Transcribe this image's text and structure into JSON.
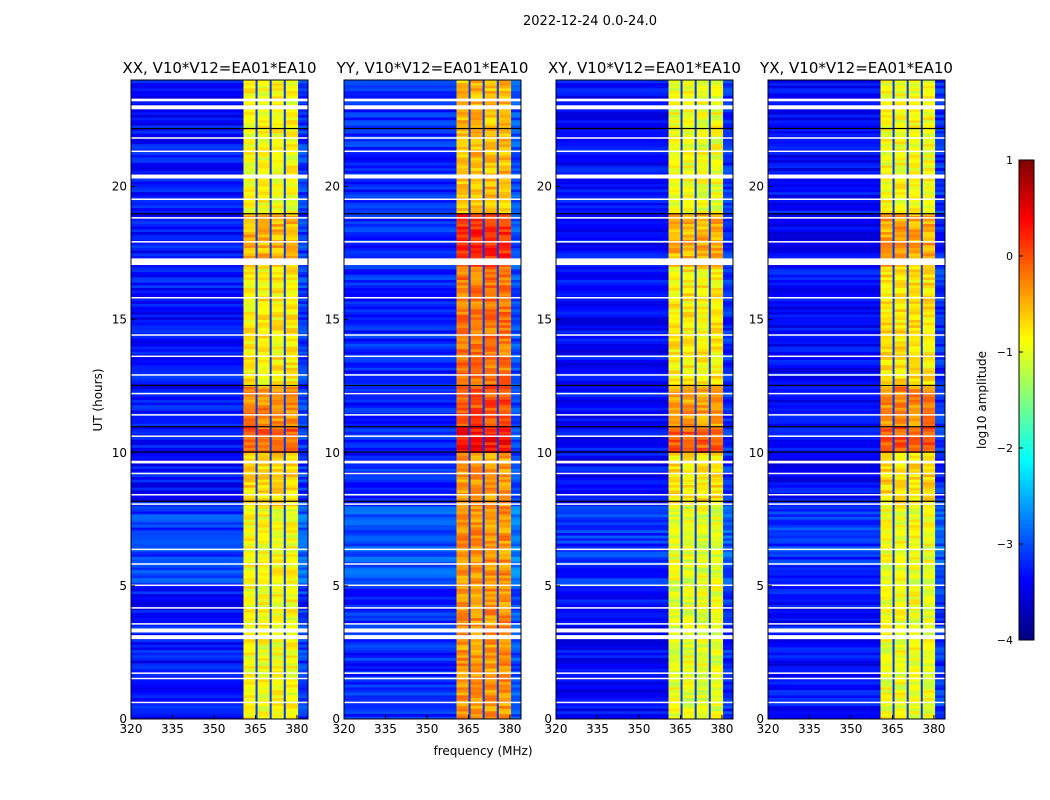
{
  "chart_data": {
    "type": "heatmap",
    "suptitle": "2022-12-24 0.0-24.0",
    "xlabel": "frequency (MHz)",
    "ylabel": "UT (hours)",
    "xlim": [
      320,
      384
    ],
    "ylim": [
      0,
      24
    ],
    "xticks": [
      320,
      335,
      350,
      365,
      380
    ],
    "yticks": [
      0,
      5,
      10,
      15,
      20
    ],
    "colorbar": {
      "label": "log10 amplitude",
      "range": [
        -4,
        1
      ],
      "ticks": [
        1,
        0,
        -1,
        -2,
        -3,
        -4
      ],
      "tick_labels": [
        "1",
        "0",
        "−1",
        "−2",
        "−3",
        "−4"
      ],
      "colormap": "jet"
    },
    "rfi_band_mhz": [
      360.7,
      380.4
    ],
    "band_separators_mhz": [
      365.4,
      370.5,
      375.6,
      380.4
    ],
    "flagged_hours": [
      [
        0.6,
        0.65
      ],
      [
        1.5,
        1.55
      ],
      [
        1.7,
        1.75
      ],
      [
        3.0,
        3.15
      ],
      [
        3.25,
        3.4
      ],
      [
        3.55,
        3.6
      ],
      [
        4.15,
        4.2
      ],
      [
        5.0,
        5.05
      ],
      [
        5.8,
        5.85
      ],
      [
        6.35,
        6.4
      ],
      [
        8.05,
        8.1
      ],
      [
        8.4,
        8.45
      ],
      [
        9.2,
        9.25
      ],
      [
        9.6,
        9.7
      ],
      [
        10.6,
        10.65
      ],
      [
        11.4,
        11.45
      ],
      [
        12.2,
        12.25
      ],
      [
        12.9,
        12.95
      ],
      [
        13.6,
        13.65
      ],
      [
        14.4,
        14.45
      ],
      [
        15.8,
        15.85
      ],
      [
        17.05,
        17.3
      ],
      [
        17.9,
        17.95
      ],
      [
        18.8,
        18.85
      ],
      [
        19.5,
        19.55
      ],
      [
        20.3,
        20.45
      ],
      [
        21.3,
        21.35
      ],
      [
        21.8,
        21.85
      ],
      [
        22.9,
        23.05
      ],
      [
        23.2,
        23.3
      ]
    ],
    "black_hours": [
      8.2,
      10.05,
      11.0,
      12.55,
      19.0,
      22.2
    ],
    "panels": [
      {
        "title": "XX, V10*V12=EA01*EA10",
        "background_log_amp": -3.3,
        "band_segments": [
          {
            "hours": [
              0,
              8
            ],
            "value": -0.9
          },
          {
            "hours": [
              8,
              10
            ],
            "value": -0.7
          },
          {
            "hours": [
              10,
              11
            ],
            "value": -0.1
          },
          {
            "hours": [
              11,
              12.5
            ],
            "value": -0.3
          },
          {
            "hours": [
              12.5,
              17
            ],
            "value": -0.8
          },
          {
            "hours": [
              17,
              19
            ],
            "value": -0.5
          },
          {
            "hours": [
              19,
              24
            ],
            "value": -0.9
          }
        ]
      },
      {
        "title": "YY, V10*V12=EA01*EA10",
        "background_log_amp": -3.2,
        "band_segments": [
          {
            "hours": [
              0,
              8
            ],
            "value": -0.35
          },
          {
            "hours": [
              8,
              10
            ],
            "value": -0.4
          },
          {
            "hours": [
              10,
              11
            ],
            "value": 0.3
          },
          {
            "hours": [
              11,
              12.5
            ],
            "value": 0.0
          },
          {
            "hours": [
              12.5,
              17
            ],
            "value": -0.2
          },
          {
            "hours": [
              17,
              19
            ],
            "value": 0.15
          },
          {
            "hours": [
              19,
              24
            ],
            "value": -0.55
          }
        ]
      },
      {
        "title": "XY, V10*V12=EA01*EA10",
        "background_log_amp": -3.35,
        "band_segments": [
          {
            "hours": [
              0,
              8
            ],
            "value": -1.0
          },
          {
            "hours": [
              8,
              10
            ],
            "value": -0.75
          },
          {
            "hours": [
              10,
              11
            ],
            "value": -0.1
          },
          {
            "hours": [
              11,
              12.5
            ],
            "value": -0.4
          },
          {
            "hours": [
              12.5,
              17
            ],
            "value": -0.8
          },
          {
            "hours": [
              17,
              19
            ],
            "value": -0.5
          },
          {
            "hours": [
              19,
              24
            ],
            "value": -0.95
          }
        ]
      },
      {
        "title": "YX, V10*V12=EA01*EA10",
        "background_log_amp": -3.35,
        "band_segments": [
          {
            "hours": [
              0,
              8
            ],
            "value": -0.95
          },
          {
            "hours": [
              8,
              10
            ],
            "value": -0.7
          },
          {
            "hours": [
              10,
              11
            ],
            "value": -0.05
          },
          {
            "hours": [
              11,
              12.5
            ],
            "value": -0.3
          },
          {
            "hours": [
              12.5,
              17
            ],
            "value": -0.75
          },
          {
            "hours": [
              17,
              19
            ],
            "value": -0.45
          },
          {
            "hours": [
              19,
              24
            ],
            "value": -0.9
          }
        ]
      }
    ]
  }
}
